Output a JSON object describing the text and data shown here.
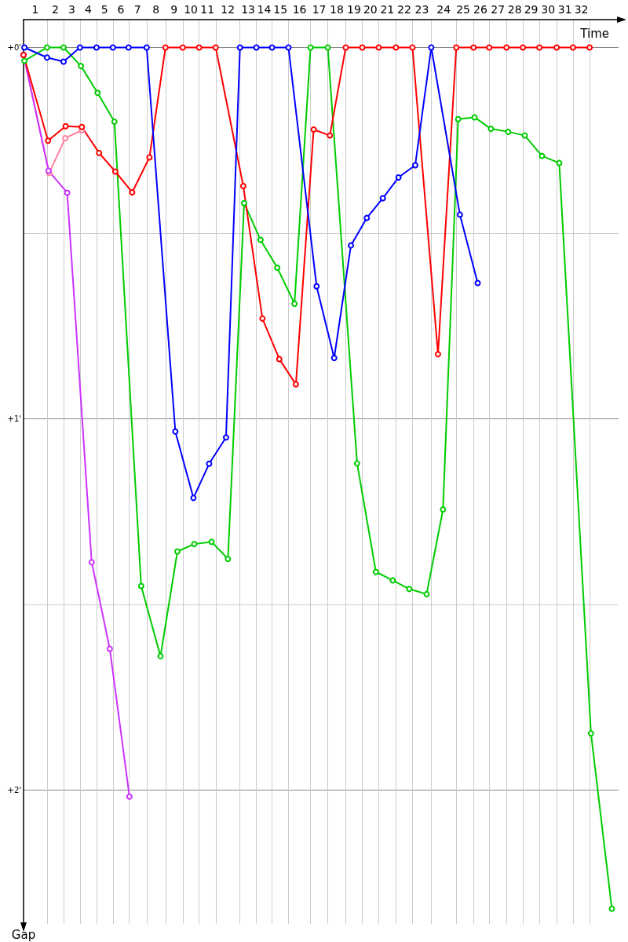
{
  "chart_data": {
    "type": "line",
    "xlabel": "Time",
    "ylabel": "Gap",
    "xlim": [
      0,
      34.5
    ],
    "ylim": [
      2.36,
      -0.075
    ],
    "xticks": [
      {
        "value": 1.36,
        "label": null
      },
      {
        "value": 2.32,
        "label": null
      },
      {
        "value": 3.27,
        "label": null
      },
      {
        "value": 4.23,
        "label": null
      },
      {
        "value": 5.18,
        "label": null
      },
      {
        "value": 6.09,
        "label": null
      },
      {
        "value": 7.14,
        "label": null
      },
      {
        "value": 8.23,
        "label": null
      },
      {
        "value": 9.23,
        "label": null
      },
      {
        "value": 10.18,
        "label": null
      },
      {
        "value": 11.14,
        "label": null
      },
      {
        "value": 12.55,
        "label": null
      },
      {
        "value": 13.5,
        "label": null
      },
      {
        "value": 14.41,
        "label": null
      },
      {
        "value": 15.36,
        "label": null
      },
      {
        "value": 16.64,
        "label": null
      },
      {
        "value": 17.64,
        "label": null
      },
      {
        "value": 18.68,
        "label": null
      },
      {
        "value": 19.64,
        "label": null
      },
      {
        "value": 20.59,
        "label": null
      },
      {
        "value": 21.59,
        "label": null
      },
      {
        "value": 22.55,
        "label": null
      },
      {
        "value": 23.64,
        "label": null
      },
      {
        "value": 25.09,
        "label": null
      },
      {
        "value": 26.09,
        "label": null
      },
      {
        "value": 27.0,
        "label": null
      },
      {
        "value": 28.0,
        "label": null
      },
      {
        "value": 28.95,
        "label": null
      },
      {
        "value": 29.91,
        "label": null
      },
      {
        "value": 30.91,
        "label": null
      },
      {
        "value": 31.86,
        "label": null
      },
      {
        "value": 32.82,
        "label": null
      },
      {
        "value": 0.68,
        "label": "1"
      },
      {
        "value": 1.84,
        "label": "2"
      },
      {
        "value": 2.8,
        "label": "3"
      },
      {
        "value": 3.75,
        "label": "4"
      },
      {
        "value": 4.7,
        "label": "5"
      },
      {
        "value": 5.64,
        "label": "6"
      },
      {
        "value": 6.61,
        "label": "7"
      },
      {
        "value": 7.68,
        "label": "8"
      },
      {
        "value": 8.73,
        "label": "9"
      },
      {
        "value": 9.7,
        "label": "10"
      },
      {
        "value": 10.66,
        "label": "11"
      },
      {
        "value": 11.84,
        "label": "12"
      },
      {
        "value": 13.02,
        "label": "13"
      },
      {
        "value": 13.95,
        "label": "14"
      },
      {
        "value": 14.89,
        "label": "15"
      },
      {
        "value": 16.0,
        "label": "16"
      },
      {
        "value": 17.14,
        "label": "17"
      },
      {
        "value": 18.16,
        "label": "18"
      },
      {
        "value": 19.16,
        "label": "19"
      },
      {
        "value": 20.11,
        "label": "20"
      },
      {
        "value": 21.09,
        "label": "21"
      },
      {
        "value": 22.07,
        "label": "22"
      },
      {
        "value": 23.1,
        "label": "23"
      },
      {
        "value": 24.36,
        "label": "24"
      },
      {
        "value": 25.49,
        "label": "25"
      },
      {
        "value": 26.49,
        "label": "26"
      },
      {
        "value": 27.5,
        "label": "27"
      },
      {
        "value": 28.48,
        "label": "28"
      },
      {
        "value": 29.43,
        "label": "29"
      },
      {
        "value": 30.41,
        "label": "30"
      },
      {
        "value": 31.39,
        "label": "31"
      },
      {
        "value": 32.34,
        "label": "32"
      }
    ],
    "yticks": [
      {
        "value": 0,
        "label": "+0'"
      },
      {
        "value": 0.5,
        "label": null
      },
      {
        "value": 1,
        "label": "+1'"
      },
      {
        "value": 1.5,
        "label": null
      },
      {
        "value": 2,
        "label": "+2'"
      }
    ],
    "grid": true,
    "marker": "circle",
    "line_style": "solid",
    "series": [
      {
        "color": "#ff80a0",
        "x": [
          0,
          1.49,
          2.42,
          3.38
        ],
        "values": [
          0.02,
          0.338,
          0.244,
          0.223
        ]
      },
      {
        "color": "#cc33ff",
        "x": [
          0,
          1.45,
          2.53,
          3.95,
          5.0,
          6.14
        ],
        "values": [
          0.02,
          0.332,
          0.391,
          1.386,
          1.619,
          2.017
        ]
      },
      {
        "color": "#00cc00",
        "x": [
          0.05,
          1.36,
          2.32,
          3.33,
          4.29,
          5.27,
          6.82,
          7.94,
          8.92,
          9.9,
          10.9,
          11.85,
          12.79,
          13.74,
          14.71,
          15.71,
          16.64,
          17.64,
          19.34,
          20.43,
          21.41,
          22.36,
          23.37,
          24.32,
          25.2,
          26.15,
          27.1,
          28.1,
          29.06,
          30.06,
          31.06,
          32.9,
          34.11
        ],
        "values": [
          0.036,
          0,
          0,
          0.05,
          0.122,
          0.2,
          1.45,
          1.639,
          1.357,
          1.337,
          1.331,
          1.377,
          0.419,
          0.518,
          0.593,
          0.69,
          0,
          0,
          1.12,
          1.412,
          1.435,
          1.458,
          1.472,
          1.244,
          0.193,
          0.188,
          0.219,
          0.227,
          0.237,
          0.292,
          0.311,
          1.847,
          2.319
        ]
      },
      {
        "color": "#ff0000",
        "x": [
          0,
          1.42,
          2.44,
          3.38,
          4.38,
          5.32,
          6.3,
          7.3,
          8.23,
          9.23,
          10.18,
          11.14,
          12.74,
          13.85,
          14.83,
          15.79,
          16.82,
          17.76,
          18.68,
          19.64,
          20.59,
          21.59,
          22.55,
          24.03,
          25.09,
          26.09,
          27.0,
          28.0,
          28.95,
          29.91,
          30.91,
          31.86,
          32.82
        ],
        "values": [
          0.02,
          0.251,
          0.212,
          0.214,
          0.284,
          0.334,
          0.39,
          0.296,
          0,
          0,
          0,
          0,
          0.373,
          0.73,
          0.839,
          0.907,
          0.221,
          0.237,
          0,
          0,
          0,
          0,
          0,
          0.826,
          0,
          0,
          0,
          0,
          0,
          0,
          0,
          0,
          0
        ]
      },
      {
        "color": "#0000ff",
        "x": [
          0.05,
          1.36,
          2.32,
          3.27,
          4.23,
          5.18,
          6.09,
          7.14,
          8.8,
          9.85,
          10.76,
          11.74,
          12.55,
          13.5,
          14.41,
          15.36,
          16.99,
          18.01,
          18.98,
          19.9,
          20.83,
          21.74,
          22.71,
          23.64,
          25.3,
          26.33
        ],
        "values": [
          0,
          0.027,
          0.038,
          0,
          0,
          0,
          0,
          0,
          1.034,
          1.213,
          1.121,
          1.05,
          0,
          0,
          0,
          0,
          0.643,
          0.836,
          0.533,
          0.459,
          0.406,
          0.35,
          0.317,
          0,
          0.45,
          0.634
        ]
      }
    ]
  }
}
